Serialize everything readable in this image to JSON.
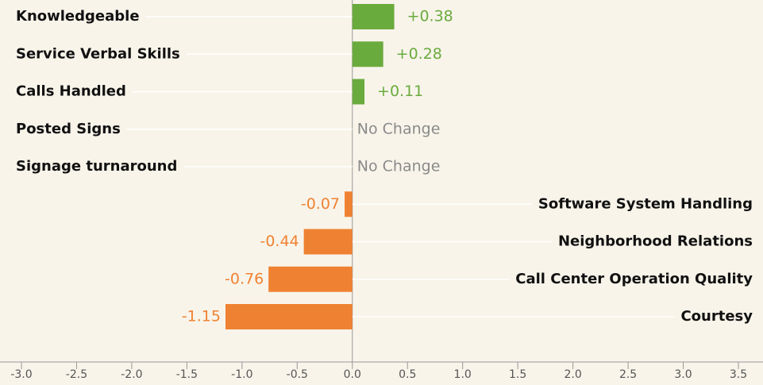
{
  "chart_data": {
    "type": "hbar",
    "categories": [
      "Knowledgeable",
      "Service Verbal Skills",
      "Calls Handled",
      "Posted Signs",
      "Signage turnaround",
      "Software System Handling",
      "Neighborhood Relations",
      "Call Center Operation Quality",
      "Courtesy"
    ],
    "values": [
      0.38,
      0.28,
      0.11,
      0,
      0,
      -0.07,
      -0.44,
      -0.76,
      -1.15
    ],
    "value_labels": [
      "+0.38",
      "+0.28",
      "+0.11",
      "No Change",
      "No Change",
      "-0.07",
      "-0.44",
      "-0.76",
      "-1.15"
    ],
    "colors": {
      "positive": "#6aab3d",
      "negative": "#ef8232",
      "zero": "#8a8a8a"
    },
    "xlim": [
      -3.0,
      3.5
    ],
    "xticks": [
      {
        "value": -3.0,
        "label": "-3.0"
      },
      {
        "value": -2.5,
        "label": "-2.5"
      },
      {
        "value": -2.0,
        "label": "-2.0"
      },
      {
        "value": -1.5,
        "label": "-1.5"
      },
      {
        "value": -1.0,
        "label": "-1.0"
      },
      {
        "value": -0.5,
        "label": "-0.5"
      },
      {
        "value": 0.0,
        "label": "0.0"
      },
      {
        "value": 0.5,
        "label": "0.5"
      },
      {
        "value": 1.0,
        "label": "1.0"
      },
      {
        "value": 1.5,
        "label": "1.5"
      },
      {
        "value": 2.0,
        "label": "2.0"
      },
      {
        "value": 2.5,
        "label": "2.5"
      },
      {
        "value": 3.0,
        "label": "3.0"
      },
      {
        "value": 3.5,
        "label": "3.5"
      }
    ]
  }
}
